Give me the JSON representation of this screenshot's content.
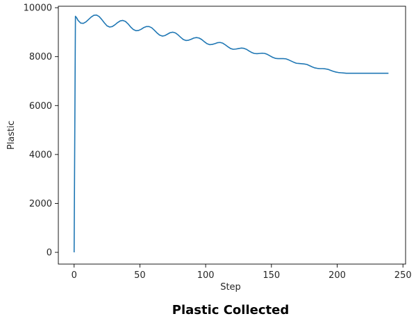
{
  "chart_data": {
    "type": "line",
    "title": "Plastic Collected",
    "xlabel": "Step",
    "ylabel": "Plastic",
    "xlim": [
      -12,
      252
    ],
    "ylim": [
      -480,
      10060
    ],
    "xticks": [
      0,
      50,
      100,
      150,
      200,
      250
    ],
    "yticks": [
      0,
      2000,
      4000,
      6000,
      8000,
      10000
    ],
    "grid": false,
    "series": [
      {
        "color": "#1f77b4",
        "x": [
          0,
          1,
          2,
          3,
          5,
          7,
          9,
          11,
          13,
          15,
          17,
          19,
          21,
          23,
          25,
          27,
          29,
          31,
          33,
          35,
          37,
          39,
          41,
          43,
          45,
          47,
          49,
          51,
          53,
          55,
          57,
          59,
          61,
          63,
          65,
          67,
          69,
          71,
          73,
          75,
          77,
          79,
          81,
          83,
          85,
          87,
          89,
          91,
          93,
          95,
          97,
          99,
          101,
          103,
          105,
          107,
          109,
          111,
          113,
          115,
          117,
          119,
          121,
          123,
          125,
          127,
          129,
          131,
          133,
          135,
          137,
          139,
          141,
          143,
          145,
          147,
          149,
          151,
          153,
          155,
          157,
          159,
          161,
          163,
          165,
          167,
          169,
          171,
          173,
          175,
          177,
          179,
          181,
          183,
          185,
          187,
          189,
          191,
          193,
          195,
          197,
          199,
          201,
          203,
          205,
          207,
          209,
          211,
          213,
          215,
          217,
          219,
          221,
          223,
          225,
          227,
          229,
          231,
          233,
          235,
          237,
          239
        ],
        "y": [
          0,
          9650,
          9580,
          9480,
          9370,
          9360,
          9420,
          9520,
          9620,
          9690,
          9700,
          9640,
          9520,
          9380,
          9260,
          9210,
          9230,
          9300,
          9390,
          9460,
          9480,
          9440,
          9340,
          9210,
          9110,
          9060,
          9070,
          9120,
          9190,
          9230,
          9230,
          9180,
          9080,
          8970,
          8880,
          8840,
          8860,
          8920,
          8980,
          9000,
          8970,
          8890,
          8790,
          8700,
          8660,
          8670,
          8710,
          8760,
          8780,
          8760,
          8700,
          8610,
          8530,
          8490,
          8500,
          8530,
          8570,
          8580,
          8550,
          8480,
          8400,
          8330,
          8300,
          8310,
          8330,
          8350,
          8340,
          8300,
          8230,
          8170,
          8130,
          8120,
          8130,
          8140,
          8130,
          8090,
          8030,
          7970,
          7930,
          7920,
          7920,
          7920,
          7910,
          7870,
          7820,
          7770,
          7730,
          7720,
          7710,
          7700,
          7680,
          7630,
          7580,
          7540,
          7520,
          7510,
          7510,
          7500,
          7480,
          7440,
          7400,
          7370,
          7350,
          7340,
          7330,
          7320,
          7320,
          7320,
          7320,
          7320,
          7320,
          7320,
          7320,
          7320,
          7320,
          7320,
          7320,
          7320,
          7320,
          7320,
          7320,
          7320
        ]
      }
    ]
  }
}
